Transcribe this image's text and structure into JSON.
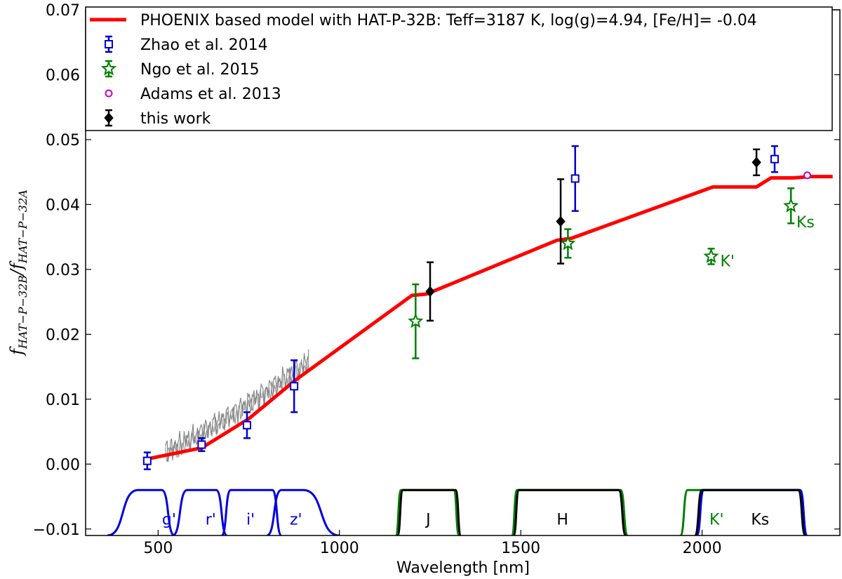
{
  "chart_data": {
    "type": "scatter",
    "xlabel": "Wavelength [nm]",
    "ylabel": "f",
    "ylabel_sub": "HAT−P−32B",
    "ylabel_den": "f",
    "ylabel_den_sub": "HAT−P−32A",
    "xlim": [
      300,
      2380
    ],
    "ylim": [
      -0.011,
      0.07
    ],
    "xticks": [
      500,
      1000,
      1500,
      2000
    ],
    "xtick_labels": [
      "500",
      "1000",
      "1500",
      "2000"
    ],
    "yticks": [
      -0.01,
      0.0,
      0.01,
      0.02,
      0.03,
      0.04,
      0.05,
      0.06,
      0.07
    ],
    "ytick_labels": [
      "−0.01",
      "0.00",
      "0.01",
      "0.02",
      "0.03",
      "0.04",
      "0.05",
      "0.06",
      "0.07"
    ],
    "colors": {
      "model": "#ff0000",
      "zhao": "#0000cc",
      "ngo": "#007f00",
      "adams": "#bf00bf",
      "this_work": "#000000",
      "spectrum": "#888888",
      "filter_blue": "#0000e0"
    },
    "legend": {
      "position": "top",
      "entries": [
        {
          "label": "PHOENIX based model with HAT-P-32B: Teff=3187 K, log(g)=4.94, [Fe/H]= -0.04",
          "marker": "line",
          "color": "#ff0000"
        },
        {
          "label": "Zhao et al. 2014",
          "marker": "square",
          "color": "#0000cc"
        },
        {
          "label": "Ngo et al. 2015",
          "marker": "star",
          "color": "#007f00"
        },
        {
          "label": "Adams et al. 2013",
          "marker": "circle",
          "color": "#bf00bf"
        },
        {
          "label": "this work",
          "marker": "diamond",
          "color": "#000000"
        }
      ]
    },
    "series": [
      {
        "name": "PHOENIX model",
        "kind": "line",
        "color": "#ff0000",
        "x": [
          470,
          620,
          750,
          880,
          1200,
          1240,
          1600,
          1640,
          2030,
          2150,
          2190,
          2250,
          2300,
          2360
        ],
        "y": [
          0.0008,
          0.0025,
          0.007,
          0.013,
          0.026,
          0.0262,
          0.0345,
          0.0348,
          0.0427,
          0.0427,
          0.0441,
          0.0441,
          0.0443,
          0.0443
        ]
      },
      {
        "name": "Zhao et al. 2014",
        "kind": "errorbar",
        "marker": "square",
        "color": "#0000cc",
        "x": [
          470,
          620,
          745,
          875,
          1650,
          2200
        ],
        "y": [
          0.0005,
          0.003,
          0.006,
          0.012,
          0.044,
          0.047
        ],
        "yerr": [
          0.0013,
          0.001,
          0.002,
          0.004,
          0.005,
          0.002
        ]
      },
      {
        "name": "Ngo et al. 2015",
        "kind": "errorbar",
        "marker": "star",
        "color": "#007f00",
        "x": [
          1210,
          1630,
          2025,
          2245
        ],
        "y": [
          0.022,
          0.034,
          0.032,
          0.0398
        ],
        "yerr": [
          0.0057,
          0.0022,
          0.0012,
          0.0027
        ]
      },
      {
        "name": "Adams et al. 2013",
        "kind": "point",
        "marker": "circle",
        "color": "#bf00bf",
        "x": [
          2290
        ],
        "y": [
          0.0445
        ]
      },
      {
        "name": "this work",
        "kind": "errorbar",
        "marker": "diamond",
        "color": "#000000",
        "x": [
          1250,
          1610,
          2150
        ],
        "y": [
          0.0266,
          0.0374,
          0.0465
        ],
        "yerr": [
          0.0045,
          0.0065,
          0.002
        ]
      }
    ],
    "annotations": [
      {
        "text": "K'",
        "x": 2050,
        "y": 0.0305,
        "color": "#007f00"
      },
      {
        "text": "Ks",
        "x": 2260,
        "y": 0.0365,
        "color": "#007f00"
      }
    ],
    "spectrum": {
      "color": "#888888",
      "x_start": 520,
      "x_end": 915,
      "y_start": 0.0022,
      "y_end": 0.016
    },
    "filters": {
      "base": -0.011,
      "top": -0.004,
      "curves": [
        {
          "name": "g'",
          "color": "#0000e0",
          "ramp": [
            360,
            445,
            510,
            545
          ]
        },
        {
          "name": "r'",
          "color": "#0000e0",
          "ramp": [
            540,
            580,
            660,
            690
          ]
        },
        {
          "name": "i'",
          "color": "#0000e0",
          "ramp": [
            675,
            700,
            815,
            840
          ]
        },
        {
          "name": "z'",
          "color": "#0000e0",
          "ramp": [
            800,
            840,
            900,
            1000
          ]
        },
        {
          "name": "J",
          "color": "#007f00",
          "ramp": [
            1155,
            1170,
            1315,
            1330
          ]
        },
        {
          "name": "J",
          "color": "#000000",
          "ramp": [
            1160,
            1175,
            1320,
            1335
          ]
        },
        {
          "name": "H",
          "color": "#007f00",
          "ramp": [
            1475,
            1490,
            1775,
            1795
          ]
        },
        {
          "name": "H",
          "color": "#000000",
          "ramp": [
            1480,
            1495,
            1770,
            1790
          ]
        },
        {
          "name": "K'",
          "color": "#007f00",
          "ramp": [
            1940,
            1960,
            2270,
            2290
          ]
        },
        {
          "name": "Ks",
          "color": "#0000e0",
          "ramp": [
            1985,
            2005,
            2270,
            2290
          ]
        },
        {
          "name": "Ks",
          "color": "#000000",
          "ramp": [
            1980,
            2000,
            2265,
            2285
          ]
        }
      ],
      "labels": [
        {
          "text": "g'",
          "x": 530,
          "color": "#0000e0"
        },
        {
          "text": "r'",
          "x": 645,
          "color": "#0000e0"
        },
        {
          "text": "i'",
          "x": 755,
          "color": "#0000e0"
        },
        {
          "text": "z'",
          "x": 880,
          "color": "#0000e0"
        },
        {
          "text": "J",
          "x": 1245,
          "color": "#000000"
        },
        {
          "text": "H",
          "x": 1615,
          "color": "#000000"
        },
        {
          "text": "K'",
          "x": 2040,
          "color": "#007f00"
        },
        {
          "text": "Ks",
          "x": 2160,
          "color": "#000000"
        }
      ]
    }
  }
}
